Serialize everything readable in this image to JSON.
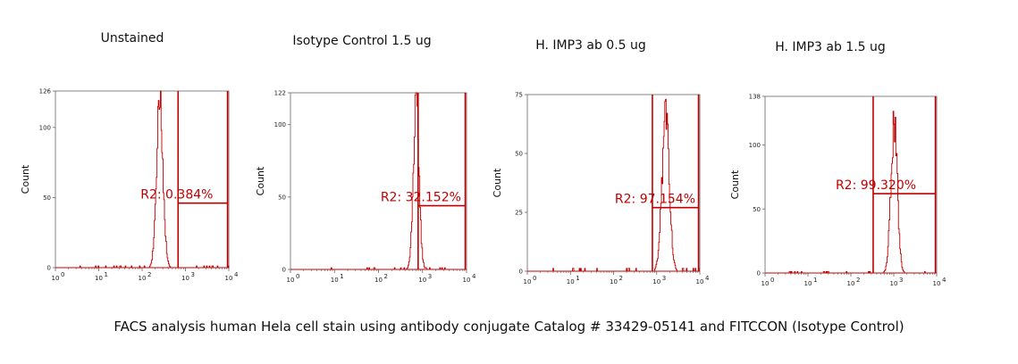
{
  "caption": "FACS analysis human Hela cell stain using antibody conjugate Catalog # 33429-05141 and FITCCON (Isotype Control)",
  "colors": {
    "histogram": "#c00000",
    "gate": "#c00000",
    "axis": "#666666"
  },
  "chart_data": [
    {
      "type": "area",
      "title": "Unstained",
      "xlabel": "",
      "ylabel": "Count",
      "xscale": "log",
      "xlim": [
        1,
        10000
      ],
      "x_ticks": [
        "10",
        "10",
        "10",
        "10",
        "10"
      ],
      "ylim": [
        0,
        126
      ],
      "y_ticks": [
        "0",
        "50",
        "100",
        "126"
      ],
      "histogram": {
        "peak_log": 2.4,
        "sigma": 0.075,
        "peak_count": 126
      },
      "region": {
        "name": "R2",
        "label": "R2: 0.384%",
        "percent": 0.384,
        "x_log_range": [
          2.83,
          3.97
        ],
        "level": 46
      }
    },
    {
      "type": "area",
      "title": "Isotype Control 1.5 ug",
      "xlabel": "",
      "ylabel": "Count",
      "xscale": "log",
      "xlim": [
        1,
        10000
      ],
      "x_ticks": [
        "10",
        "10",
        "10",
        "10",
        "10"
      ],
      "ylim": [
        0,
        122
      ],
      "y_ticks": [
        "0",
        "50",
        "100",
        "122"
      ],
      "histogram": {
        "peak_log": 2.85,
        "sigma": 0.065,
        "peak_count": 122
      },
      "region": {
        "name": "R2",
        "label": "R2: 32.152%",
        "percent": 32.152,
        "x_log_range": [
          2.9,
          3.97
        ],
        "level": 44
      }
    },
    {
      "type": "area",
      "title": "H. IMP3 ab 0.5 ug",
      "xlabel": "",
      "ylabel": "Count",
      "xscale": "log",
      "xlim": [
        1,
        10000
      ],
      "x_ticks": [
        "10",
        "10",
        "10",
        "10",
        "10"
      ],
      "ylim": [
        0,
        75
      ],
      "y_ticks": [
        "0",
        "25",
        "50",
        "75"
      ],
      "histogram": {
        "peak_log": 3.2,
        "sigma": 0.085,
        "peak_count": 70
      },
      "region": {
        "name": "R2",
        "label": "R2: 97.154%",
        "percent": 97.154,
        "x_log_range": [
          2.9,
          3.97
        ],
        "level": 27
      }
    },
    {
      "type": "area",
      "title": "H. IMP3 ab 1.5 ug",
      "xlabel": "",
      "ylabel": "Count",
      "xscale": "log",
      "xlim": [
        1,
        10000
      ],
      "x_ticks": [
        "10",
        "10",
        "10",
        "10",
        "10"
      ],
      "ylim": [
        0,
        138
      ],
      "y_ticks": [
        "0",
        "50",
        "100",
        "138"
      ],
      "histogram": {
        "peak_log": 3.0,
        "sigma": 0.075,
        "peak_count": 124
      },
      "region": {
        "name": "R2",
        "label": "R2: 99.320%",
        "percent": 99.32,
        "x_log_range": [
          2.52,
          3.97
        ],
        "level": 62
      }
    }
  ]
}
